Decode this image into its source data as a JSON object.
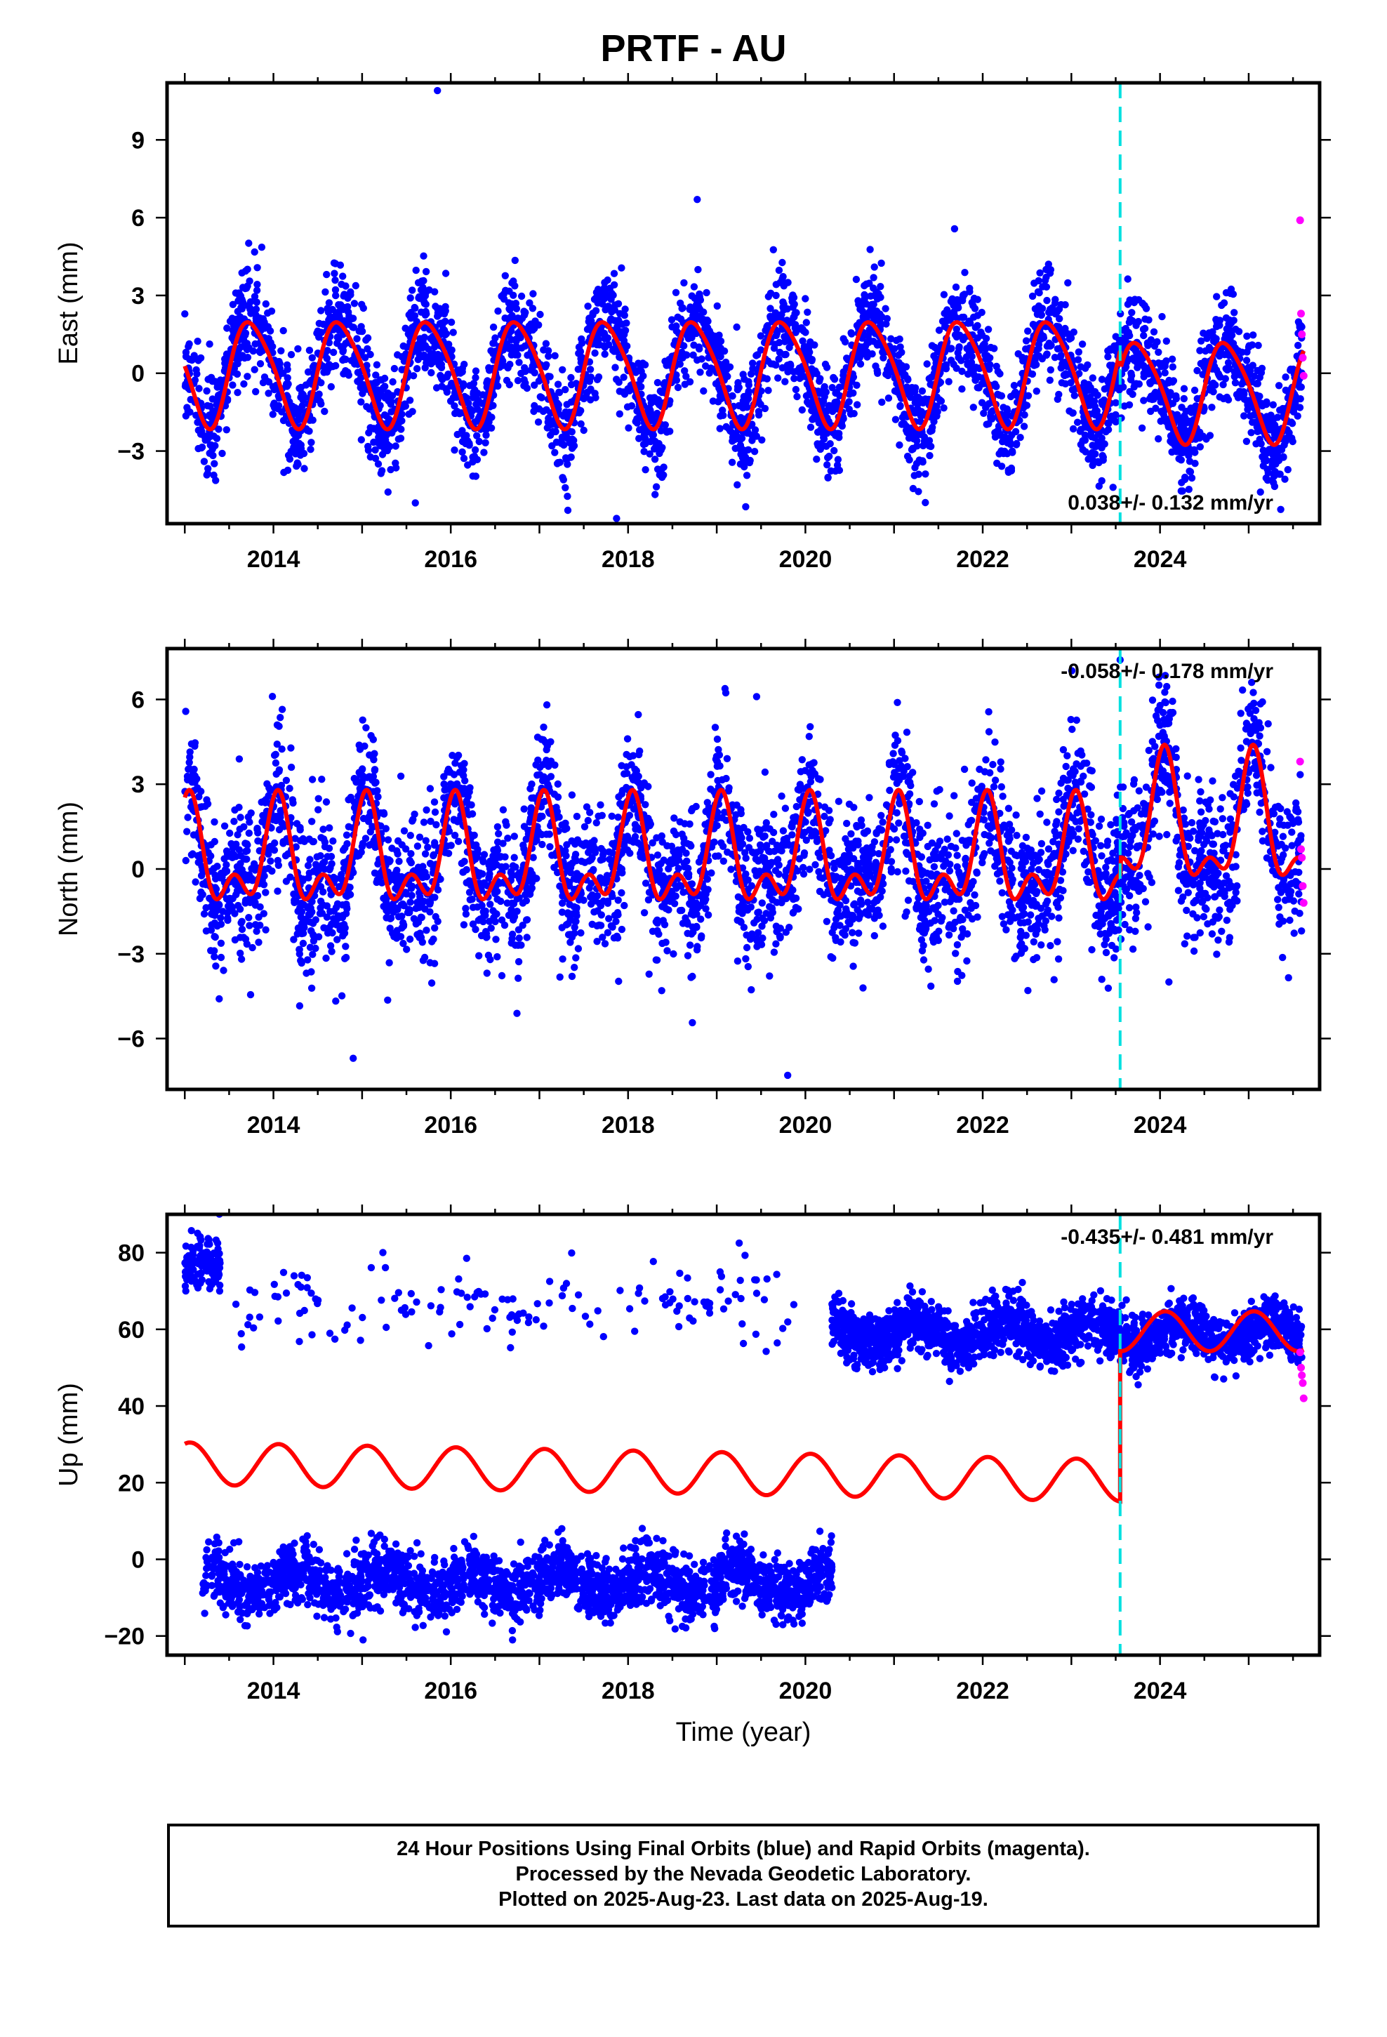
{
  "title": "PRTF - AU",
  "caption": [
    "24 Hour Positions Using Final Orbits (blue) and Rapid Orbits (magenta).",
    "Processed by the Nevada Geodetic Laboratory.",
    "Plotted on 2025-Aug-23. Last data on 2025-Aug-19."
  ],
  "colors": {
    "final_orbits": "#0000ff",
    "rapid_orbits": "#ff00ff",
    "model": "#ff0000",
    "step": "#00e0e0"
  },
  "chart_data": [
    {
      "type": "scatter",
      "panel": "east",
      "ylabel": "East (mm)",
      "xlabel": "",
      "xlim": [
        2012.8,
        2025.8
      ],
      "ylim": [
        -5.8,
        11.2
      ],
      "xticks": [
        2014,
        2016,
        2018,
        2020,
        2022,
        2024
      ],
      "yticks": [
        -3,
        0,
        3,
        6,
        9
      ],
      "rate": "0.038+/- 0.132 mm/yr",
      "rate_position": "bottom-right",
      "step_epoch": 2023.55,
      "model": {
        "a0": 2013.0,
        "mean": 0.05,
        "amp1": 2.0,
        "phase1": 3.1,
        "amp2": 0.3,
        "phase2": 0.5,
        "offset_after_step": -0.7,
        "amp_after_step": 1.9
      },
      "scatter": {
        "seed": 11,
        "noise": 1.0,
        "density_per_year": 300
      },
      "rapid_orbits": {
        "x": [
          2025.58,
          2025.59,
          2025.6,
          2025.61,
          2025.62
        ],
        "y": [
          5.9,
          2.3,
          1.5,
          0.6,
          -0.1
        ]
      },
      "outliers": [
        [
          2015.85,
          10.9
        ],
        [
          2017.87,
          -5.6
        ],
        [
          2015.6,
          -5.0
        ],
        [
          2018.78,
          6.7
        ],
        [
          2023.47,
          -4.4
        ]
      ]
    },
    {
      "type": "scatter",
      "panel": "north",
      "ylabel": "North (mm)",
      "xlabel": "",
      "xlim": [
        2012.8,
        2025.8
      ],
      "ylim": [
        -7.8,
        7.8
      ],
      "xticks": [
        2014,
        2016,
        2018,
        2020,
        2022,
        2024
      ],
      "yticks": [
        -6,
        -3,
        0,
        3,
        6
      ],
      "rate": "-0.058+/- 0.178 mm/yr",
      "rate_position": "top-right",
      "step_epoch": 2023.55,
      "model": {
        "a0": 2013.0,
        "mean": 0.3,
        "amp1": 1.5,
        "phase1": 1.3,
        "amp2": 1.0,
        "phase2": 0.9,
        "offset_after_step": 1.1,
        "amp_after_step": 2.0
      },
      "scatter": {
        "seed": 23,
        "noise": 1.3,
        "density_per_year": 300
      },
      "rapid_orbits": {
        "x": [
          2025.58,
          2025.59,
          2025.6,
          2025.61,
          2025.62
        ],
        "y": [
          3.8,
          0.7,
          0.4,
          -0.6,
          -1.2
        ]
      },
      "outliers": [
        [
          2019.8,
          -7.3
        ],
        [
          2019.45,
          6.1
        ],
        [
          2023.55,
          7.4
        ],
        [
          2014.9,
          -6.7
        ],
        [
          2024.1,
          -4.0
        ]
      ]
    },
    {
      "type": "scatter",
      "panel": "up",
      "ylabel": "Up (mm)",
      "xlabel": "Time (year)",
      "xlim": [
        2012.8,
        2025.8
      ],
      "ylim": [
        -25,
        90
      ],
      "xticks": [
        2014,
        2016,
        2018,
        2020,
        2022,
        2024
      ],
      "yticks": [
        -20,
        0,
        20,
        40,
        60,
        80
      ],
      "rate": "-0.435+/- 0.481 mm/yr",
      "rate_position": "top-right",
      "step_epoch": 2023.55,
      "model_segments": [
        {
          "from": 2013.0,
          "to": 2023.55,
          "mean": 25.0,
          "trend": -0.42,
          "amp": 5.5
        },
        {
          "from": 2023.55,
          "to": 2025.62,
          "mean": 59.5,
          "trend": 0.0,
          "amp": 5.2
        }
      ],
      "scatter_segments": [
        {
          "from": 2013.0,
          "to": 2013.4,
          "center": 75,
          "noise": 3.5,
          "count": 120
        },
        {
          "from": 2013.2,
          "to": 2020.3,
          "center": -6,
          "noise": 4.0,
          "count": 2200
        },
        {
          "from": 2013.5,
          "to": 2020.0,
          "center": 67,
          "noise": 5.0,
          "count": 150
        },
        {
          "from": 2020.3,
          "to": 2025.6,
          "center": 59,
          "noise": 3.5,
          "count": 2000
        }
      ],
      "rapid_orbits": {
        "x": [
          2025.58,
          2025.59,
          2025.6,
          2025.61,
          2025.62
        ],
        "y": [
          54,
          50,
          48,
          46,
          42
        ]
      }
    }
  ]
}
